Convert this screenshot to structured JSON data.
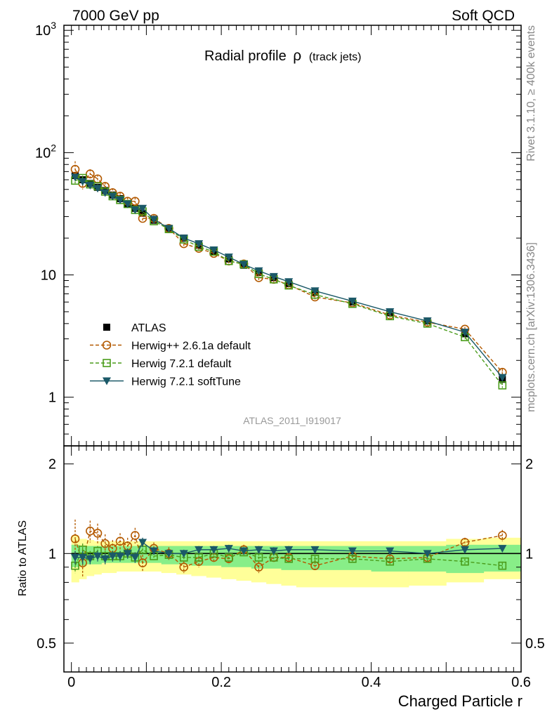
{
  "header": {
    "left": "7000 GeV pp",
    "right": "Soft QCD"
  },
  "side_text": {
    "rivet": "Rivet 3.1.10, ≥ 400k events",
    "mcplots": "mcplots.cern.ch [arXiv:1306.3436]"
  },
  "watermark": "ATLAS_2011_I919017",
  "colors": {
    "atlas": "#000000",
    "herwigpp": "#b35900",
    "herwig721": "#4a9c1a",
    "softtune": "#1b5968",
    "band_outer": "#ffff99",
    "band_inner": "#88ee88"
  },
  "chart_data": [
    {
      "type": "line",
      "title_main": "Radial profile",
      "title_symbol": "ρ",
      "title_sub": "(track jets)",
      "xlabel": "",
      "ylabel": "",
      "xlim": [
        -0.01,
        0.6
      ],
      "ylim": [
        0.4,
        1100
      ],
      "yscale": "log",
      "yticks": [
        {
          "v": 1,
          "label": "1"
        },
        {
          "v": 10,
          "label": "10"
        },
        {
          "v": 100,
          "label": "10",
          "exp": "2"
        },
        {
          "v": 1000,
          "label": "10",
          "exp": "3"
        }
      ],
      "legend_position": "lower-left",
      "x": [
        0.005,
        0.015,
        0.025,
        0.035,
        0.045,
        0.055,
        0.065,
        0.075,
        0.085,
        0.095,
        0.11,
        0.13,
        0.15,
        0.17,
        0.19,
        0.21,
        0.23,
        0.25,
        0.27,
        0.29,
        0.325,
        0.375,
        0.425,
        0.475,
        0.525,
        0.575
      ],
      "series": [
        {
          "name": "ATLAS",
          "style": "data",
          "values": [
            65,
            60,
            56,
            52,
            49,
            45,
            42,
            38,
            35,
            32,
            28,
            24,
            20,
            17.5,
            15.5,
            13.5,
            12,
            10.5,
            9.5,
            8.5,
            7.2,
            6.0,
            4.9,
            4.2,
            3.3,
            1.4
          ],
          "errors": [
            4,
            3,
            3,
            2.5,
            2,
            2,
            1.8,
            1.6,
            1.5,
            1.4,
            1.2,
            1,
            0.8,
            0.7,
            0.6,
            0.55,
            0.5,
            0.45,
            0.4,
            0.35,
            0.3,
            0.25,
            0.2,
            0.18,
            0.15,
            0.08
          ]
        },
        {
          "name": "Herwig++ 2.6.1a default",
          "style": "herwigpp",
          "values": [
            73,
            56,
            67,
            61,
            53,
            47,
            44,
            40,
            40,
            29,
            29,
            24,
            18,
            16.5,
            15,
            13,
            12.3,
            9.5,
            9.2,
            8.3,
            6.6,
            5.9,
            4.7,
            4.1,
            3.6,
            1.6
          ],
          "errors": [
            12,
            6,
            6,
            5,
            4,
            4,
            3,
            3,
            3,
            2,
            2,
            1.5,
            1.2,
            1,
            1,
            0.8,
            0.7,
            0.6,
            0.5,
            0.4,
            0.3,
            0.25,
            0.2,
            0.18,
            0.15,
            0.1
          ]
        },
        {
          "name": "Herwig 7.2.1 default",
          "style": "herwig721",
          "values": [
            59,
            62,
            55,
            53,
            48,
            44,
            41,
            38,
            34,
            33,
            27.5,
            23.7,
            19.5,
            17,
            15.5,
            13,
            12.2,
            10.2,
            9.2,
            8.2,
            6.9,
            5.8,
            4.6,
            4.0,
            3.1,
            1.25
          ],
          "errors": [
            3,
            3,
            2.5,
            2,
            2,
            1.8,
            1.6,
            1.5,
            1.4,
            1.3,
            1,
            0.9,
            0.7,
            0.6,
            0.5,
            0.45,
            0.4,
            0.35,
            0.3,
            0.3,
            0.25,
            0.2,
            0.18,
            0.15,
            0.12,
            0.06
          ]
        },
        {
          "name": "Herwig 7.2.1 softTune",
          "style": "softtune",
          "values": [
            63,
            58,
            54,
            51,
            47,
            44,
            41,
            38,
            34,
            35,
            28.5,
            24,
            20,
            18,
            16,
            14,
            12.2,
            10.8,
            9.7,
            8.8,
            7.4,
            6.1,
            5.0,
            4.2,
            3.4,
            1.45
          ],
          "errors": [
            3,
            3,
            2.5,
            2,
            2,
            1.8,
            1.6,
            1.5,
            1.4,
            1.3,
            1,
            0.9,
            0.7,
            0.6,
            0.5,
            0.45,
            0.4,
            0.35,
            0.3,
            0.3,
            0.25,
            0.2,
            0.18,
            0.15,
            0.12,
            0.06
          ]
        }
      ]
    },
    {
      "type": "line",
      "title": "",
      "xlabel": "Charged Particle r",
      "ylabel": "Ratio to ATLAS",
      "xlim": [
        -0.01,
        0.6
      ],
      "ylim": [
        0.4,
        2.3
      ],
      "yscale": "log",
      "yticks": [
        {
          "v": 0.5,
          "label": "0.5"
        },
        {
          "v": 1,
          "label": "1"
        },
        {
          "v": 2,
          "label": "2"
        }
      ],
      "xticks": [
        {
          "v": 0,
          "label": "0"
        },
        {
          "v": 0.2,
          "label": "0.2"
        },
        {
          "v": 0.4,
          "label": "0.4"
        },
        {
          "v": 0.6,
          "label": "0.6"
        }
      ],
      "bin_edges": [
        0,
        0.01,
        0.02,
        0.03,
        0.04,
        0.05,
        0.06,
        0.07,
        0.08,
        0.09,
        0.1,
        0.12,
        0.14,
        0.16,
        0.18,
        0.2,
        0.22,
        0.24,
        0.26,
        0.28,
        0.3,
        0.35,
        0.4,
        0.45,
        0.5,
        0.55,
        0.6
      ],
      "band_outer": {
        "low": [
          0.8,
          0.82,
          0.84,
          0.85,
          0.86,
          0.86,
          0.87,
          0.87,
          0.87,
          0.87,
          0.87,
          0.86,
          0.85,
          0.84,
          0.83,
          0.82,
          0.81,
          0.8,
          0.79,
          0.78,
          0.77,
          0.77,
          0.77,
          0.78,
          0.8,
          0.82
        ],
        "high": [
          1.15,
          1.12,
          1.11,
          1.1,
          1.1,
          1.1,
          1.1,
          1.1,
          1.1,
          1.1,
          1.1,
          1.1,
          1.1,
          1.1,
          1.1,
          1.1,
          1.1,
          1.1,
          1.1,
          1.1,
          1.1,
          1.1,
          1.1,
          1.1,
          1.12,
          1.13
        ]
      },
      "band_inner": {
        "low": [
          0.9,
          0.91,
          0.92,
          0.92,
          0.93,
          0.93,
          0.93,
          0.93,
          0.93,
          0.93,
          0.93,
          0.92,
          0.92,
          0.91,
          0.91,
          0.9,
          0.9,
          0.89,
          0.89,
          0.88,
          0.88,
          0.88,
          0.87,
          0.87,
          0.86,
          0.87
        ],
        "high": [
          1.07,
          1.06,
          1.06,
          1.06,
          1.06,
          1.06,
          1.06,
          1.06,
          1.06,
          1.06,
          1.06,
          1.06,
          1.06,
          1.06,
          1.06,
          1.06,
          1.06,
          1.06,
          1.06,
          1.06,
          1.06,
          1.06,
          1.06,
          1.06,
          1.07,
          1.07
        ]
      },
      "x": [
        0.005,
        0.015,
        0.025,
        0.035,
        0.045,
        0.055,
        0.065,
        0.075,
        0.085,
        0.095,
        0.11,
        0.13,
        0.15,
        0.17,
        0.19,
        0.21,
        0.23,
        0.25,
        0.27,
        0.29,
        0.325,
        0.375,
        0.425,
        0.475,
        0.525,
        0.575
      ],
      "series": [
        {
          "name": "Herwig++ 2.6.1a default",
          "style": "herwigpp",
          "values": [
            1.12,
            0.93,
            1.19,
            1.17,
            1.08,
            1.04,
            1.1,
            1.06,
            1.15,
            0.93,
            1.04,
            1.0,
            0.9,
            0.94,
            0.97,
            0.96,
            1.03,
            0.9,
            0.97,
            0.97,
            0.91,
            0.98,
            0.96,
            0.97,
            1.09,
            1.15
          ],
          "errors": [
            0.18,
            0.1,
            0.1,
            0.09,
            0.08,
            0.07,
            0.07,
            0.07,
            0.07,
            0.06,
            0.05,
            0.05,
            0.04,
            0.04,
            0.04,
            0.04,
            0.04,
            0.04,
            0.03,
            0.03,
            0.03,
            0.03,
            0.03,
            0.03,
            0.04,
            0.05
          ]
        },
        {
          "name": "Herwig 7.2.1 default",
          "style": "herwig721",
          "values": [
            0.91,
            1.03,
            0.98,
            1.02,
            0.98,
            0.98,
            0.98,
            1.0,
            0.97,
            1.03,
            0.98,
            0.99,
            0.97,
            0.97,
            1.0,
            0.97,
            1.01,
            0.97,
            0.97,
            0.96,
            0.96,
            0.96,
            0.94,
            0.96,
            0.94,
            0.91
          ],
          "errors": [
            0.05,
            0.05,
            0.04,
            0.04,
            0.04,
            0.04,
            0.04,
            0.04,
            0.04,
            0.04,
            0.03,
            0.03,
            0.03,
            0.03,
            0.03,
            0.03,
            0.03,
            0.03,
            0.03,
            0.03,
            0.02,
            0.02,
            0.02,
            0.02,
            0.02,
            0.02
          ]
        },
        {
          "name": "Herwig 7.2.1 softTune",
          "style": "softtune",
          "values": [
            0.97,
            0.97,
            0.96,
            0.98,
            0.96,
            0.98,
            0.98,
            1.0,
            0.97,
            1.09,
            1.02,
            1.0,
            1.0,
            1.03,
            1.03,
            1.04,
            1.02,
            1.03,
            1.02,
            1.03,
            1.03,
            1.02,
            1.02,
            1.0,
            1.03,
            1.04
          ],
          "errors": [
            0.05,
            0.05,
            0.04,
            0.04,
            0.04,
            0.04,
            0.04,
            0.04,
            0.04,
            0.04,
            0.03,
            0.03,
            0.03,
            0.03,
            0.03,
            0.03,
            0.03,
            0.03,
            0.03,
            0.03,
            0.02,
            0.02,
            0.02,
            0.02,
            0.02,
            0.02
          ]
        }
      ]
    }
  ]
}
